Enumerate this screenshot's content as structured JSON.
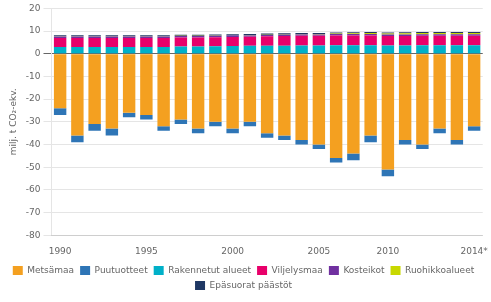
{
  "chart_data": {
    "type": "bar",
    "stacked": true,
    "y_label": "milj. t CO₂-ekv.",
    "categories": [
      "1990",
      null,
      null,
      null,
      null,
      "1995",
      null,
      null,
      null,
      null,
      "2000",
      null,
      null,
      null,
      null,
      "2005",
      null,
      null,
      null,
      "2010",
      null,
      null,
      null,
      null,
      "2014*"
    ],
    "series": [
      {
        "name": "Metsämaa",
        "color": "#f4a020",
        "values": [
          -24,
          -36,
          -31,
          -33,
          -26,
          -27,
          -32,
          -29,
          -33,
          -30,
          -33,
          -30,
          -35,
          -36,
          -38,
          -40,
          -46,
          -44,
          -36,
          -51,
          -38,
          -40,
          -33,
          -38,
          -32
        ]
      },
      {
        "name": "Puutuotteet",
        "color": "#2e75b6",
        "values": [
          -3,
          -3,
          -3,
          -3,
          -2,
          -2,
          -2,
          -2,
          -2,
          -2,
          -2,
          -2,
          -2,
          -2,
          -2,
          -2,
          -2,
          -3,
          -3,
          -3,
          -2,
          -2,
          -2,
          -2,
          -2
        ]
      },
      {
        "name": "Rakennetut alueet",
        "color": "#00b0c8",
        "values": [
          3.0,
          3.0,
          3.0,
          3.0,
          3.0,
          3.0,
          3.0,
          3.2,
          3.2,
          3.3,
          3.4,
          3.5,
          3.5,
          3.5,
          3.6,
          3.6,
          3.7,
          3.7,
          3.7,
          3.6,
          3.6,
          3.7,
          3.7,
          3.7,
          3.7
        ]
      },
      {
        "name": "Viljelysmaa",
        "color": "#e8006a",
        "values": [
          4.0,
          4.0,
          4.0,
          4.0,
          4.0,
          4.0,
          4.0,
          4.0,
          4.0,
          4.0,
          4.0,
          4.0,
          4.2,
          4.3,
          4.3,
          4.3,
          4.3,
          4.3,
          4.3,
          4.2,
          4.2,
          4.2,
          4.2,
          4.2,
          4.2
        ]
      },
      {
        "name": "Kosteikot",
        "color": "#7030a0",
        "values": [
          0.6,
          0.6,
          0.6,
          0.6,
          0.6,
          0.6,
          0.6,
          0.6,
          0.6,
          0.6,
          0.6,
          0.6,
          0.6,
          0.6,
          0.6,
          0.6,
          0.7,
          0.7,
          0.7,
          0.7,
          0.7,
          0.7,
          0.7,
          0.7,
          0.7
        ]
      },
      {
        "name": "Ruohikkoalueet",
        "color": "#c8d800",
        "values": [
          0.1,
          0.1,
          0.1,
          0.1,
          0.1,
          0.1,
          0.1,
          0.1,
          0.1,
          0.1,
          0.1,
          0.1,
          0.1,
          0.1,
          0.1,
          0.2,
          0.2,
          0.3,
          0.4,
          0.4,
          0.5,
          0.5,
          0.5,
          0.5,
          0.5
        ]
      },
      {
        "name": "Epäsuorat päästöt",
        "color": "#1f3864",
        "values": [
          0.5,
          0.5,
          0.5,
          0.5,
          0.5,
          0.5,
          0.5,
          0.5,
          0.5,
          0.5,
          0.5,
          0.5,
          0.5,
          0.5,
          0.5,
          0.5,
          0.5,
          0.5,
          0.5,
          0.5,
          0.5,
          0.5,
          0.5,
          0.5,
          0.5
        ]
      }
    ],
    "ylim": [
      -80,
      20
    ],
    "yticks": [
      -80,
      -70,
      -60,
      -50,
      -40,
      -30,
      -20,
      -10,
      0,
      10,
      20
    ],
    "grid": true,
    "legend": "bottom"
  }
}
